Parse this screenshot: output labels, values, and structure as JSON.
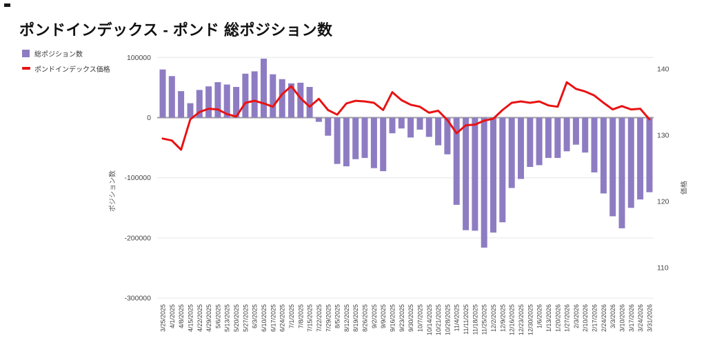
{
  "title": "ポンドインデックス - ポンド 総ポジション数",
  "legend": {
    "items": [
      {
        "label": "総ポジション数",
        "type": "bar",
        "color": "#8e7cc3"
      },
      {
        "label": "ポンドインデックス価格",
        "type": "line",
        "color": "#e81212"
      }
    ]
  },
  "chart_data": {
    "type": "bar+line combo",
    "title": "ポンドインデックス - ポンド 総ポジション数",
    "grid": true,
    "legend_position": "top-left",
    "categories": [
      "3/25/2025",
      "4/1/2025",
      "4/8/2025",
      "4/15/2025",
      "4/22/2025",
      "4/29/2025",
      "5/6/2025",
      "5/13/2025",
      "5/20/2025",
      "5/27/2025",
      "6/3/2025",
      "6/10/2025",
      "6/17/2025",
      "6/24/2025",
      "7/1/2025",
      "7/8/2025",
      "7/15/2025",
      "7/22/2025",
      "7/29/2025",
      "8/5/2025",
      "8/12/2025",
      "8/19/2025",
      "8/26/2025",
      "9/2/2025",
      "9/9/2025",
      "9/16/2025",
      "9/23/2025",
      "9/30/2025",
      "10/7/2025",
      "10/14/2025",
      "10/21/2025",
      "10/28/2025",
      "11/4/2025",
      "11/11/2025",
      "11/18/2025",
      "11/25/2025",
      "12/2/2025",
      "12/9/2025",
      "12/16/2025",
      "12/23/2025",
      "12/30/2025",
      "1/6/2026",
      "1/13/2026",
      "1/20/2026",
      "1/27/2026",
      "2/3/2026",
      "2/10/2026",
      "2/17/2026",
      "2/24/2026",
      "3/3/2026",
      "3/10/2026",
      "3/17/2026",
      "3/24/2026",
      "3/31/2026"
    ],
    "series": [
      {
        "name": "総ポジション数",
        "type": "bar",
        "axis": "left",
        "color": "#8e7cc3",
        "values": [
          80000,
          69000,
          44000,
          24000,
          46000,
          52000,
          59000,
          55000,
          51000,
          73000,
          77000,
          98000,
          72000,
          64000,
          57000,
          58000,
          51000,
          -7000,
          -30000,
          -77000,
          -81000,
          -69000,
          -67000,
          -84000,
          -89000,
          -26000,
          -18000,
          -33000,
          -20000,
          -32000,
          -46000,
          -61000,
          -145000,
          -187000,
          -188000,
          -216000,
          -191000,
          -174000,
          -117000,
          -102000,
          -82000,
          -79000,
          -67000,
          -67000,
          -56000,
          -45000,
          -58000,
          -91000,
          -126000,
          -164000,
          -184000,
          -150000,
          -136000,
          -124000
        ]
      },
      {
        "name": "ポンドインデックス価格",
        "type": "line",
        "axis": "right",
        "color": "#e81212",
        "values": [
          129.5,
          129.2,
          127.8,
          132.4,
          133.5,
          134.0,
          133.9,
          133.2,
          132.8,
          134.9,
          135.2,
          134.8,
          134.3,
          136.2,
          137.4,
          135.6,
          134.3,
          135.5,
          133.8,
          133.1,
          134.8,
          135.2,
          135.1,
          134.9,
          133.8,
          136.5,
          135.3,
          134.6,
          134.3,
          133.4,
          133.7,
          132.3,
          130.3,
          131.5,
          131.6,
          132.2,
          132.5,
          133.8,
          134.9,
          135.1,
          134.9,
          135.1,
          134.5,
          134.3,
          138.0,
          137.0,
          136.6,
          136.0,
          134.9,
          133.9,
          134.4,
          133.9,
          134.0,
          132.4
        ]
      }
    ],
    "left_axis": {
      "title": "ポジション数",
      "ticks": [
        100000,
        0,
        -100000,
        -200000,
        -300000
      ],
      "range": [
        -300000,
        100000
      ]
    },
    "right_axis": {
      "title": "価格",
      "ticks": [
        140,
        130,
        120,
        110
      ],
      "range": [
        108,
        141
      ]
    }
  },
  "colors": {
    "bar": "#8e7cc3",
    "line": "#e81212",
    "gridline": "#e6e6e6",
    "zero_axis": "#9e9e9e",
    "tick_text": "#444444"
  }
}
